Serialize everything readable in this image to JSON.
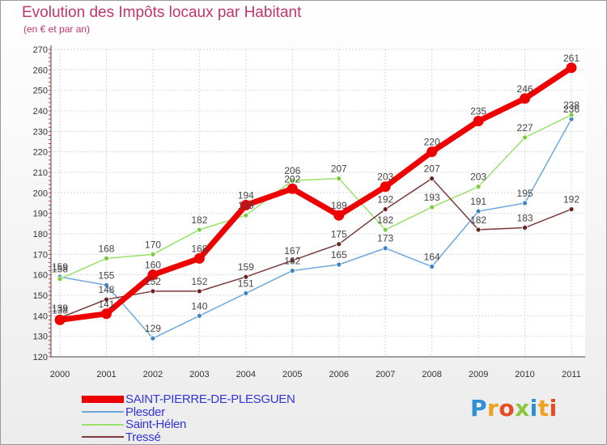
{
  "title": "Evolution des Impôts locaux par Habitant",
  "subtitle": "(en € et par an)",
  "logo": {
    "text": "Proxiti",
    "letters": [
      "P",
      "r",
      "o",
      "x",
      "i",
      "t",
      "i"
    ],
    "colors": [
      "#2e8fd6",
      "#f0a11f",
      "#e84b24",
      "#8cc63f",
      "#2e8fd6",
      "#f0a11f",
      "#e84b24"
    ]
  },
  "chart_data": {
    "type": "line",
    "title": "Evolution des Impôts locaux par Habitant",
    "subtitle": "(en € et par an)",
    "xlabel": "",
    "ylabel": "",
    "x": [
      "2000",
      "2001",
      "2002",
      "2003",
      "2004",
      "2005",
      "2006",
      "2007",
      "2008",
      "2009",
      "2010",
      "2011"
    ],
    "ylim": [
      120,
      270
    ],
    "yticks": [
      "120",
      "130",
      "140",
      "150",
      "160",
      "170",
      "180",
      "190",
      "200",
      "210",
      "220",
      "230",
      "240",
      "250",
      "260",
      "270"
    ],
    "grid": true,
    "legend_position": "bottom-left",
    "series": [
      {
        "name": "SAINT-PIERRE-DE-PLESGUEN",
        "color": "#ee0000",
        "marker_color": "#ee0000",
        "width": 7,
        "values": [
          138,
          141,
          160,
          168,
          194,
          202,
          189,
          203,
          220,
          235,
          246,
          261
        ]
      },
      {
        "name": "Plesder",
        "color": "#6fa8dc",
        "marker_color": "#3d85c6",
        "width": 1.5,
        "values": [
          159,
          155,
          129,
          140,
          151,
          162,
          165,
          173,
          164,
          191,
          195,
          236
        ]
      },
      {
        "name": "Saint-Hélen",
        "color": "#99e26a",
        "marker_color": "#7ccd3e",
        "width": 1.5,
        "values": [
          158,
          168,
          170,
          182,
          189,
          206,
          207,
          182,
          193,
          203,
          227,
          238
        ]
      },
      {
        "name": "Tressé",
        "color": "#7b3939",
        "marker_color": "#6b2222",
        "width": 1.5,
        "values": [
          139,
          148,
          152,
          152,
          159,
          167,
          175,
          192,
          207,
          182,
          183,
          192
        ]
      }
    ]
  }
}
